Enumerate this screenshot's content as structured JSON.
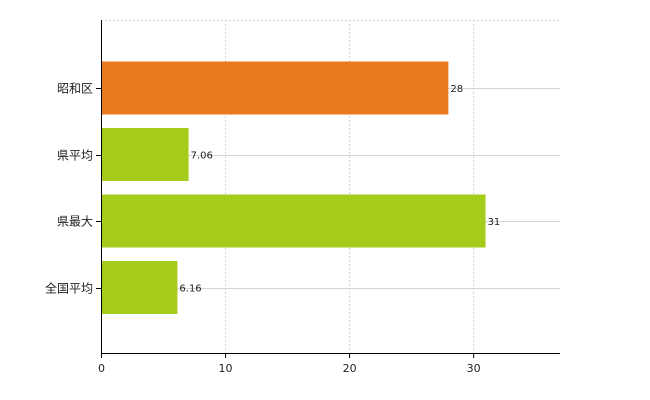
{
  "chart_data": {
    "type": "bar",
    "orientation": "horizontal",
    "categories": [
      "昭和区",
      "県平均",
      "県最大",
      "全国平均"
    ],
    "values": [
      28,
      7.06,
      31,
      6.16
    ],
    "value_labels": [
      "28",
      "7.06",
      "31",
      "6.16"
    ],
    "bar_colors": [
      "#e87a20",
      "#a5cc1a",
      "#a5cc1a",
      "#a5cc1a"
    ],
    "xlim": [
      0,
      37
    ],
    "xticks": [
      0,
      10,
      20,
      30
    ],
    "tick_labels": [
      "0",
      "10",
      "20",
      "30"
    ],
    "grid": true,
    "title": "",
    "xlabel": "",
    "ylabel": ""
  },
  "colors": {
    "highlight": "#e87a20",
    "default": "#a5cc1a",
    "grid": "#d3d3d3",
    "axis": "#000000"
  }
}
